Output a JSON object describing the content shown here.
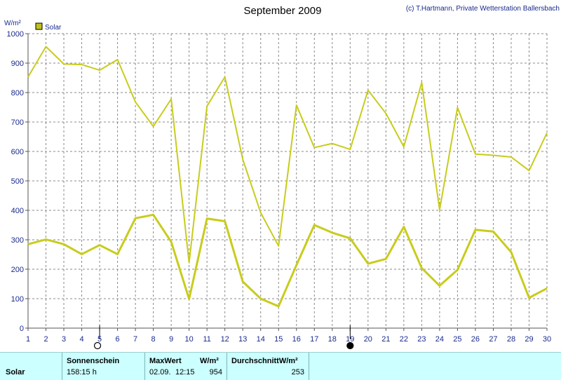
{
  "header": {
    "title": "September 2009",
    "credit": "(c) T.Hartmann, Private Wetterstation Ballersbach"
  },
  "legend": {
    "label": "Solar",
    "color": "#bfc21a"
  },
  "chart_data": {
    "type": "line",
    "x": [
      1,
      2,
      3,
      4,
      5,
      6,
      7,
      8,
      9,
      10,
      11,
      12,
      13,
      14,
      15,
      16,
      17,
      18,
      19,
      20,
      21,
      22,
      23,
      24,
      25,
      26,
      27,
      28,
      29,
      30
    ],
    "series": [
      {
        "name": "Solar",
        "role": "max",
        "color": "#c8cc1c",
        "values": [
          853,
          956,
          897,
          895,
          876,
          912,
          768,
          685,
          778,
          222,
          754,
          853,
          573,
          392,
          279,
          757,
          613,
          627,
          607,
          808,
          729,
          616,
          834,
          402,
          749,
          591,
          587,
          581,
          535,
          663
        ]
      },
      {
        "name": "Solar",
        "role": "mean",
        "color": "#c8cc1c",
        "values": [
          285,
          301,
          285,
          251,
          282,
          251,
          373,
          385,
          293,
          99,
          372,
          363,
          158,
          100,
          74,
          214,
          350,
          324,
          305,
          219,
          235,
          344,
          204,
          144,
          198,
          334,
          328,
          258,
          103,
          135
        ]
      }
    ],
    "ylabel": "W/m²",
    "ylim": [
      0,
      1000
    ],
    "yticks": [
      0,
      100,
      200,
      300,
      400,
      500,
      600,
      700,
      800,
      900,
      1000
    ],
    "xticks": [
      "1",
      "2",
      "3",
      "4",
      "5",
      "6",
      "7",
      "8",
      "9",
      "10",
      "11",
      "12",
      "13",
      "14",
      "15",
      "16",
      "17",
      "18",
      "19",
      "20",
      "21",
      "22",
      "23",
      "24",
      "25",
      "26",
      "27",
      "28",
      "29",
      "30"
    ],
    "xlim": [
      1,
      30
    ],
    "grid": true,
    "legend_position": "top-left",
    "moon_phases": [
      {
        "day": 5,
        "phase": "full-moon"
      },
      {
        "day": 19,
        "phase": "new-moon"
      }
    ]
  },
  "footer": {
    "row_label": "Solar",
    "sunshine_header": "Sonnenschein",
    "sunshine_value": "158:15 h",
    "max_header": "MaxWert",
    "max_unit": "W/m²",
    "max_date": "02.09.",
    "max_time": "12:15",
    "max_value": "954",
    "avg_header": "DurchschnittW/m²",
    "avg_value": "253"
  }
}
